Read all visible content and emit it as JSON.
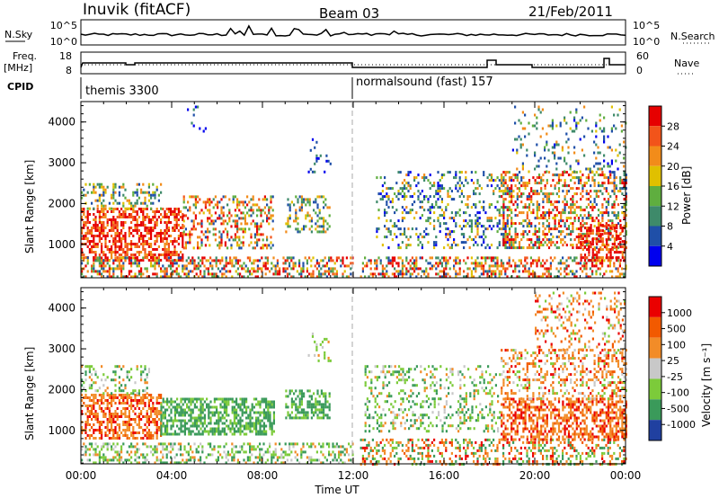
{
  "header": {
    "station": "Inuvik (fitACF)",
    "beam": "Beam 03",
    "date": "21/Feb/2011"
  },
  "nsky_panel": {
    "left_label": "N.Sky",
    "left_ticks": [
      "10^5",
      "10^0"
    ],
    "right_label": "N.Search",
    "right_ticks": [
      "10^5",
      "10^0"
    ]
  },
  "freq_panel": {
    "left_label_1": "Freq.",
    "left_label_2": "[MHz]",
    "left_ticks": [
      "18",
      "8"
    ],
    "right_label": "Nave",
    "right_ticks": [
      "60",
      "0"
    ]
  },
  "cpid": {
    "label": "CPID",
    "segments": [
      "themis 3300",
      "normalsound (fast) 157"
    ]
  },
  "colors": {
    "power_scale": [
      "#0000ee",
      "#1f4fa8",
      "#3e8a6a",
      "#5fae3f",
      "#e0c000",
      "#f28c1a",
      "#f2541a",
      "#e60000"
    ],
    "velocity_scale": [
      "#ea0000",
      "#f25a00",
      "#f28c28",
      "#c8c8c8",
      "#7ccb3a",
      "#3a9a5a",
      "#2040a0"
    ]
  },
  "chart_data": [
    {
      "type": "heatmap",
      "ylabel": "Slant Range [km]",
      "ylim": [
        180,
        4500
      ],
      "y_ticks": [
        "1000",
        "2000",
        "3000",
        "4000"
      ],
      "x_ticks": [
        "00:00",
        "04:00",
        "08:00",
        "12:00",
        "16:00",
        "20:00",
        "00:00"
      ],
      "colorbar_label": "Power [dB]",
      "colorbar_ticks": [
        "28",
        "24",
        "20",
        "16",
        "12",
        "8",
        "4"
      ],
      "colorbar_range": [
        0,
        32
      ],
      "grid": false
    },
    {
      "type": "heatmap",
      "ylabel": "Slant Range [km]",
      "xlabel": "Time UT",
      "ylim": [
        180,
        4500
      ],
      "y_ticks": [
        "1000",
        "2000",
        "3000",
        "4000"
      ],
      "x_ticks": [
        "00:00",
        "04:00",
        "08:00",
        "12:00",
        "16:00",
        "20:00",
        "00:00"
      ],
      "colorbar_label": "Velocity [m s⁻¹]",
      "colorbar_ticks": [
        "1000",
        "500",
        "100",
        "25",
        "-25",
        "-100",
        "-500",
        "-1000"
      ],
      "grid": false
    }
  ]
}
